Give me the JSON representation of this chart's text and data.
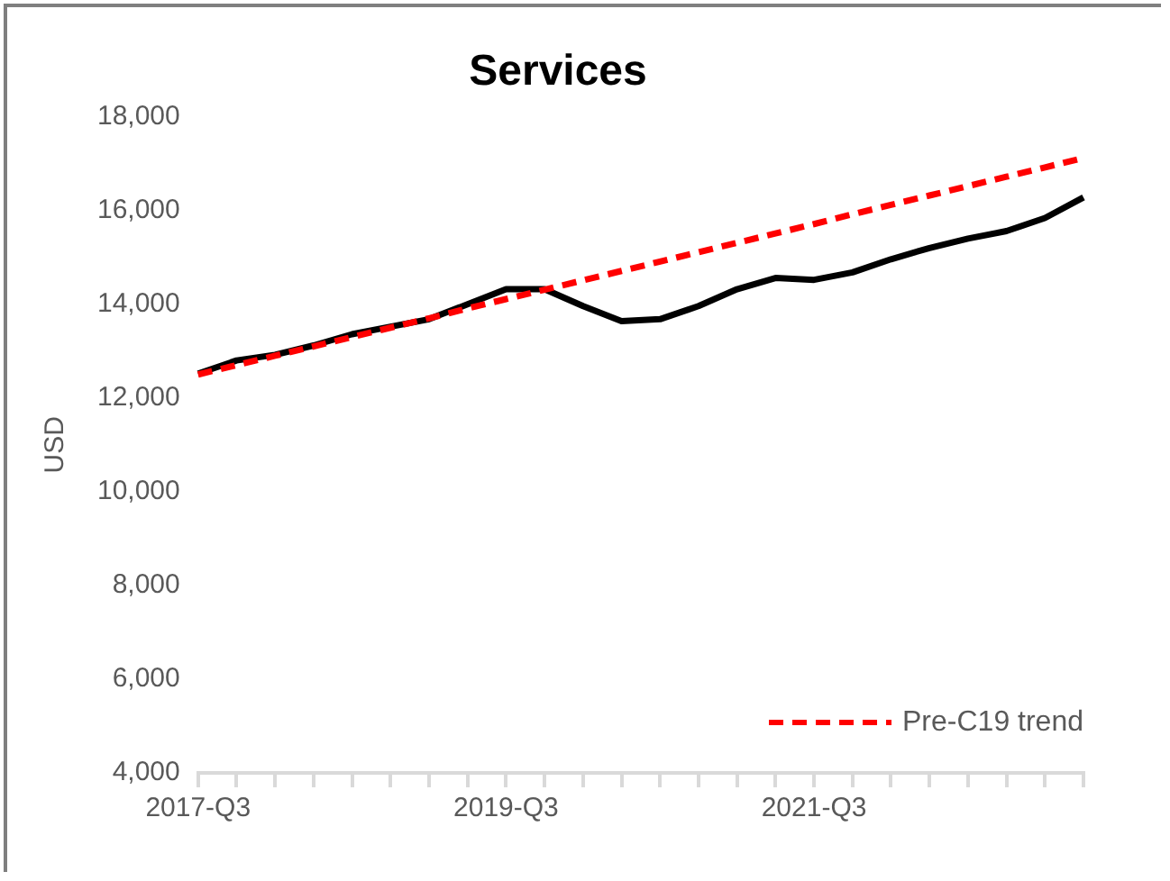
{
  "chart_data": {
    "type": "line",
    "title": "Services",
    "ylabel": "USD",
    "categories": [
      "2017-Q3",
      null,
      null,
      null,
      null,
      null,
      null,
      null,
      "2019-Q3",
      null,
      null,
      null,
      null,
      null,
      null,
      null,
      "2021-Q3",
      null,
      null,
      null,
      null,
      null,
      null,
      null
    ],
    "series": [
      {
        "color": "#000000",
        "values": [
          12520,
          12800,
          12920,
          13120,
          13360,
          13520,
          13680,
          14000,
          14320,
          14320,
          13960,
          13640,
          13680,
          13960,
          14320,
          14560,
          14520,
          14680,
          14960,
          15200,
          15400,
          15560,
          15840,
          16280
        ]
      },
      {
        "name": "Pre-C19 trend",
        "color": "#ff0000",
        "line_style": "dashed",
        "values": [
          12500,
          12700,
          12900,
          13100,
          13300,
          13500,
          13700,
          13910,
          14110,
          14310,
          14510,
          14710,
          14910,
          15110,
          15310,
          15510,
          15710,
          15920,
          16120,
          16320,
          16520,
          16720,
          16920,
          17120
        ]
      }
    ],
    "ylim": [
      4000,
      18000
    ],
    "yticks": [
      {
        "value": 4000,
        "label": "4,000"
      },
      {
        "value": 6000,
        "label": "6,000"
      },
      {
        "value": 8000,
        "label": "8,000"
      },
      {
        "value": 10000,
        "label": "10,000"
      },
      {
        "value": 12000,
        "label": "12,000"
      },
      {
        "value": 14000,
        "label": "14,000"
      },
      {
        "value": 16000,
        "label": "16,000"
      },
      {
        "value": 18000,
        "label": "18,000"
      }
    ],
    "grid": false,
    "legend": "bottom right",
    "marker": "none"
  }
}
